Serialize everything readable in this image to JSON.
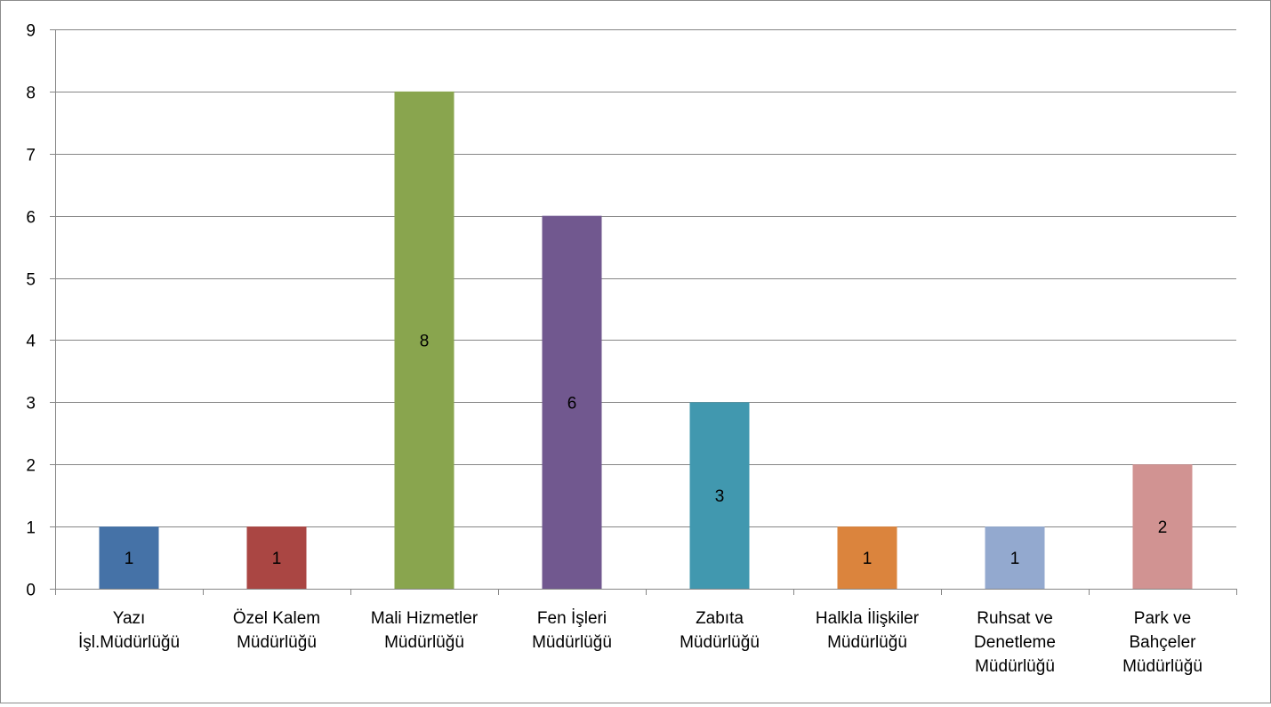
{
  "chart_data": {
    "type": "bar",
    "title": "",
    "xlabel": "",
    "ylabel": "",
    "ylim": [
      0,
      9
    ],
    "yticks": [
      "0",
      "1",
      "2",
      "3",
      "4",
      "5",
      "6",
      "7",
      "8",
      "9"
    ],
    "grid": true,
    "legend": "none",
    "categories": [
      [
        "Yazı",
        "İşl.Müdürlüğü"
      ],
      [
        "Özel Kalem",
        "Müdürlüğü"
      ],
      [
        "Mali Hizmetler",
        "Müdürlüğü"
      ],
      [
        "Fen İşleri",
        "Müdürlüğü"
      ],
      [
        "Zabıta",
        "Müdürlüğü"
      ],
      [
        "Halkla İlişkiler",
        "Müdürlüğü"
      ],
      [
        "Ruhsat ve",
        "Denetleme",
        "Müdürlüğü"
      ],
      [
        "Park ve",
        "Bahçeler",
        "Müdürlüğü"
      ]
    ],
    "values": [
      1,
      1,
      8,
      6,
      3,
      1,
      1,
      2
    ],
    "data_labels": [
      "1",
      "1",
      "8",
      "6",
      "3",
      "1",
      "1",
      "2"
    ],
    "colors": [
      "#4572A7",
      "#AA4643",
      "#89A54E",
      "#71588F",
      "#4198AF",
      "#DB843D",
      "#93A9CF",
      "#D19392"
    ],
    "axis_color": "#868686",
    "grid_color": "#868686"
  }
}
